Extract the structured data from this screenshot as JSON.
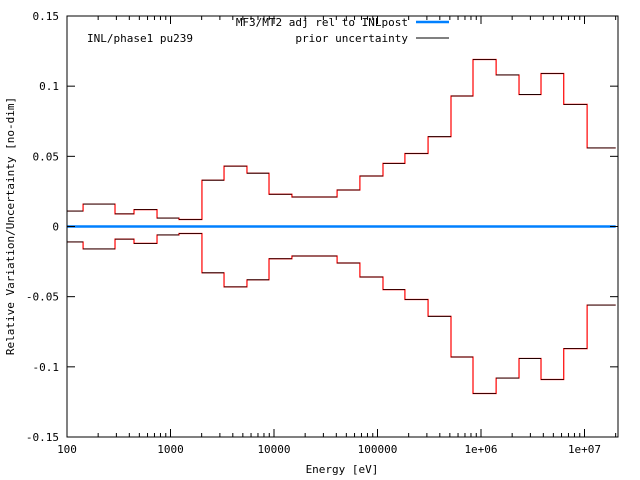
{
  "chart_data": {
    "type": "line",
    "style": "histogram-steps",
    "xlabel": "Energy [eV]",
    "ylabel": "Relative Variation/Uncertainty [no-dim]",
    "annotation": "INL/phase1 pu239",
    "xscale": "log",
    "xlim": [
      100,
      20000000
    ],
    "ylim": [
      -0.15,
      0.15
    ],
    "grid": false,
    "legend_position": "top-right",
    "xticks": [
      "100",
      "1000",
      "10000",
      "100000",
      "1e+06",
      "1e+07"
    ],
    "yticks": [
      "0.15",
      "0.1",
      "0.05",
      "0",
      "-0.05",
      "-0.1",
      "-0.15"
    ],
    "bin_edges_eV": [
      100,
      143,
      291,
      444,
      741,
      1208,
      2013,
      3290,
      5480,
      8950,
      14900,
      40700,
      67600,
      113000,
      184000,
      308000,
      513000,
      837000,
      1400000,
      2330000,
      3800000,
      6300000,
      10600000,
      20000000
    ],
    "series": [
      {
        "name": "MF3/MT2 adj rel to INLpost",
        "color": "#0080ff",
        "values": [
          0,
          0,
          0,
          0,
          0,
          0,
          0,
          0,
          0,
          0,
          0,
          0,
          0,
          0,
          0,
          0,
          0,
          0,
          0,
          0,
          0,
          0,
          0
        ]
      },
      {
        "name": "prior uncertainty",
        "color": "#000000",
        "values": [
          0.011,
          0.016,
          0.009,
          0.012,
          0.006,
          0.005,
          0.033,
          0.043,
          0.038,
          0.023,
          0.021,
          0.026,
          0.036,
          0.045,
          0.052,
          0.064,
          0.093,
          0.119,
          0.108,
          0.094,
          0.109,
          0.087,
          0.056
        ]
      },
      {
        "color": "#ff0000",
        "values": [
          0.011,
          0.016,
          0.009,
          0.012,
          0.006,
          0.005,
          0.033,
          0.043,
          0.038,
          0.023,
          0.021,
          0.026,
          0.036,
          0.045,
          0.052,
          0.064,
          0.093,
          0.119,
          0.108,
          0.094,
          0.109,
          0.087,
          0.056
        ]
      },
      {
        "color": "#ff0000",
        "values": [
          -0.011,
          -0.016,
          -0.009,
          -0.012,
          -0.006,
          -0.005,
          -0.033,
          -0.043,
          -0.038,
          -0.023,
          -0.021,
          -0.026,
          -0.036,
          -0.045,
          -0.052,
          -0.064,
          -0.093,
          -0.119,
          -0.108,
          -0.094,
          -0.109,
          -0.087,
          -0.056
        ]
      }
    ]
  }
}
